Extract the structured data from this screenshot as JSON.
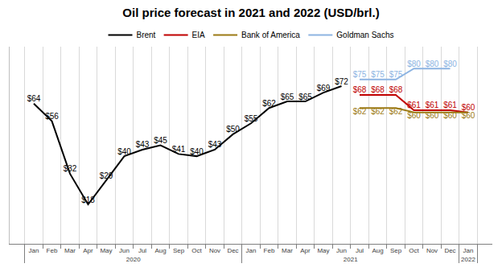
{
  "chart_data": {
    "type": "line",
    "title": "Oil price forecast in 2021 and 2022 (USD/brl.)",
    "categories": [
      [
        "2020",
        "Jan"
      ],
      [
        "2020",
        "Feb"
      ],
      [
        "2020",
        "Mar"
      ],
      [
        "2020",
        "Apr"
      ],
      [
        "2020",
        "May"
      ],
      [
        "2020",
        "Jun"
      ],
      [
        "2020",
        "Jul"
      ],
      [
        "2020",
        "Aug"
      ],
      [
        "2020",
        "Sep"
      ],
      [
        "2020",
        "Oct"
      ],
      [
        "2020",
        "Nov"
      ],
      [
        "2020",
        "Dec"
      ],
      [
        "2021",
        "Jan"
      ],
      [
        "2021",
        "Feb"
      ],
      [
        "2021",
        "Mar"
      ],
      [
        "2021",
        "Apr"
      ],
      [
        "2021",
        "May"
      ],
      [
        "2021",
        "Jun"
      ],
      [
        "2021",
        "Jul"
      ],
      [
        "2021",
        "Aug"
      ],
      [
        "2021",
        "Sep"
      ],
      [
        "2021",
        "Oct"
      ],
      [
        "2021",
        "Nov"
      ],
      [
        "2021",
        "Dec"
      ],
      [
        "2022",
        "Jan"
      ]
    ],
    "series": [
      {
        "name": "Brent",
        "color": "#000000",
        "values": [
          64,
          56,
          32,
          18,
          29,
          40,
          43,
          45,
          41,
          40,
          43,
          50,
          55,
          62,
          65,
          65,
          69,
          72,
          null,
          null,
          null,
          null,
          null,
          null,
          null
        ],
        "value_labels": [
          "$64",
          "$56",
          "$32",
          "$18",
          "$29",
          "$40",
          "$43",
          "$45",
          "$41",
          "$40",
          "$43",
          "$50",
          "$55",
          "$62",
          "$65",
          "$65",
          "$69",
          "$72",
          null,
          null,
          null,
          null,
          null,
          null,
          null
        ]
      },
      {
        "name": "EIA",
        "color": "#c00000",
        "values": [
          null,
          null,
          null,
          null,
          null,
          null,
          null,
          null,
          null,
          null,
          null,
          null,
          null,
          null,
          null,
          null,
          null,
          null,
          68,
          68,
          68,
          61,
          61,
          61,
          60
        ],
        "value_labels": [
          null,
          null,
          null,
          null,
          null,
          null,
          null,
          null,
          null,
          null,
          null,
          null,
          null,
          null,
          null,
          null,
          null,
          null,
          "$68",
          "$68",
          "$68",
          "$61",
          "$61",
          "$61",
          "$60"
        ]
      },
      {
        "name": "Bank of America",
        "color": "#9c7a14",
        "values": [
          null,
          null,
          null,
          null,
          null,
          null,
          null,
          null,
          null,
          null,
          null,
          null,
          null,
          null,
          null,
          null,
          null,
          null,
          62,
          62,
          62,
          60,
          60,
          60,
          60
        ],
        "value_labels": [
          null,
          null,
          null,
          null,
          null,
          null,
          null,
          null,
          null,
          null,
          null,
          null,
          null,
          null,
          null,
          null,
          null,
          null,
          "$62",
          "$62",
          "$62",
          "$60",
          "$60",
          "$60",
          "$60"
        ]
      },
      {
        "name": "Goldman Sachs",
        "color": "#8db4e2",
        "values": [
          null,
          null,
          null,
          null,
          null,
          null,
          null,
          null,
          null,
          null,
          null,
          null,
          null,
          null,
          null,
          null,
          null,
          null,
          75,
          75,
          75,
          80,
          80,
          80,
          null
        ],
        "value_labels": [
          null,
          null,
          null,
          null,
          null,
          null,
          null,
          null,
          null,
          null,
          null,
          null,
          null,
          null,
          null,
          null,
          null,
          null,
          "$75",
          "$75",
          "$75",
          "$80",
          "$80",
          "$80",
          null
        ]
      }
    ],
    "ylim": [
      0,
      90
    ],
    "yticks": [],
    "tick_labels": "x",
    "grid": true,
    "legend": "top",
    "data_labels": true
  }
}
